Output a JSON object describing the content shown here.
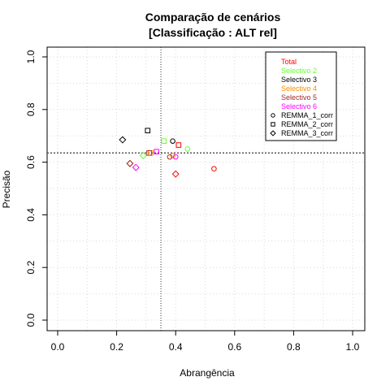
{
  "chart_data": {
    "type": "scatter",
    "title": "Comparação de cenários",
    "subtitle": "[Classificação : ALT rel]",
    "xlabel": "Abrangência",
    "ylabel": "Precisão",
    "xlim": [
      0,
      1
    ],
    "ylim": [
      0,
      1
    ],
    "xticks": [
      "0.0",
      "0.2",
      "0.4",
      "0.6",
      "0.8",
      "1.0"
    ],
    "yticks": [
      "0.0",
      "0.2",
      "0.4",
      "0.6",
      "0.8",
      "1.0"
    ],
    "grid": true,
    "legend_position": "top-right",
    "reference_lines": {
      "x": 0.35,
      "y": 0.635
    },
    "color_legend": [
      {
        "label": "Total",
        "color": "#ff0000"
      },
      {
        "label": "Selectivo 2",
        "color": "#66ff33"
      },
      {
        "label": "Selectivo 3",
        "color": "#000000"
      },
      {
        "label": "Selectivo 4",
        "color": "#ff8c00"
      },
      {
        "label": "Selectivo 5",
        "color": "#a52a2a"
      },
      {
        "label": "Selectivo 6",
        "color": "#ff00ff"
      }
    ],
    "shape_legend": [
      {
        "label": "REMMA_1_corr",
        "shape": "circle"
      },
      {
        "label": "REMMA_2_corr",
        "shape": "square"
      },
      {
        "label": "REMMA_3_corr",
        "shape": "diamond"
      }
    ],
    "points": [
      {
        "x": 0.53,
        "y": 0.575,
        "group": "Total",
        "shape": "circle"
      },
      {
        "x": 0.41,
        "y": 0.665,
        "group": "Total",
        "shape": "square"
      },
      {
        "x": 0.4,
        "y": 0.555,
        "group": "Total",
        "shape": "diamond"
      },
      {
        "x": 0.44,
        "y": 0.65,
        "group": "Selectivo 2",
        "shape": "circle"
      },
      {
        "x": 0.36,
        "y": 0.68,
        "group": "Selectivo 2",
        "shape": "square"
      },
      {
        "x": 0.29,
        "y": 0.625,
        "group": "Selectivo 2",
        "shape": "diamond"
      },
      {
        "x": 0.39,
        "y": 0.68,
        "group": "Selectivo 3",
        "shape": "circle"
      },
      {
        "x": 0.305,
        "y": 0.72,
        "group": "Selectivo 3",
        "shape": "square"
      },
      {
        "x": 0.22,
        "y": 0.685,
        "group": "Selectivo 3",
        "shape": "diamond"
      },
      {
        "x": 0.39,
        "y": 0.625,
        "group": "Selectivo 4",
        "shape": "circle"
      },
      {
        "x": 0.315,
        "y": 0.635,
        "group": "Selectivo 4",
        "shape": "square"
      },
      {
        "x": 0.245,
        "y": 0.595,
        "group": "Selectivo 4",
        "shape": "diamond"
      },
      {
        "x": 0.38,
        "y": 0.62,
        "group": "Selectivo 5",
        "shape": "circle"
      },
      {
        "x": 0.31,
        "y": 0.635,
        "group": "Selectivo 5",
        "shape": "square"
      },
      {
        "x": 0.245,
        "y": 0.595,
        "group": "Selectivo 5",
        "shape": "diamond"
      },
      {
        "x": 0.4,
        "y": 0.62,
        "group": "Selectivo 6",
        "shape": "circle"
      },
      {
        "x": 0.335,
        "y": 0.64,
        "group": "Selectivo 6",
        "shape": "square"
      },
      {
        "x": 0.265,
        "y": 0.58,
        "group": "Selectivo 6",
        "shape": "diamond"
      }
    ]
  }
}
